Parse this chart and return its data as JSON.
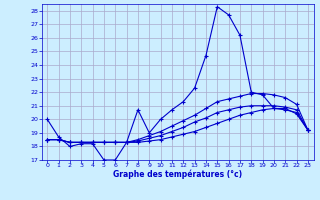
{
  "title": "Graphe des températures (°c)",
  "background_color": "#cceeff",
  "grid_color": "#aaaacc",
  "line_color": "#0000cc",
  "marker": "+",
  "ylim": [
    17,
    28.5
  ],
  "xlim": [
    -0.5,
    23.5
  ],
  "yticks": [
    17,
    18,
    19,
    20,
    21,
    22,
    23,
    24,
    25,
    26,
    27,
    28
  ],
  "xticks": [
    0,
    1,
    2,
    3,
    4,
    5,
    6,
    7,
    8,
    9,
    10,
    11,
    12,
    13,
    14,
    15,
    16,
    17,
    18,
    19,
    20,
    21,
    22,
    23
  ],
  "line1": [
    20.0,
    18.7,
    18.0,
    18.2,
    18.2,
    17.0,
    17.0,
    18.3,
    20.7,
    19.0,
    20.0,
    20.7,
    21.3,
    22.3,
    24.7,
    28.3,
    27.7,
    26.2,
    22.0,
    21.8,
    20.8,
    20.8,
    20.4,
    19.2
  ],
  "line2": [
    18.5,
    18.5,
    18.3,
    18.3,
    18.3,
    18.3,
    18.3,
    18.3,
    18.3,
    18.4,
    18.5,
    18.7,
    18.9,
    19.1,
    19.4,
    19.7,
    20.0,
    20.3,
    20.5,
    20.7,
    20.8,
    20.7,
    20.5,
    19.2
  ],
  "line3": [
    18.5,
    18.5,
    18.3,
    18.3,
    18.3,
    18.3,
    18.3,
    18.3,
    18.5,
    18.8,
    19.1,
    19.5,
    19.9,
    20.3,
    20.8,
    21.3,
    21.5,
    21.7,
    21.9,
    21.9,
    21.8,
    21.6,
    21.1,
    19.2
  ],
  "line4": [
    18.5,
    18.5,
    18.3,
    18.3,
    18.3,
    18.3,
    18.3,
    18.3,
    18.4,
    18.6,
    18.8,
    19.1,
    19.4,
    19.8,
    20.1,
    20.5,
    20.7,
    20.9,
    21.0,
    21.0,
    21.0,
    20.9,
    20.7,
    19.2
  ]
}
